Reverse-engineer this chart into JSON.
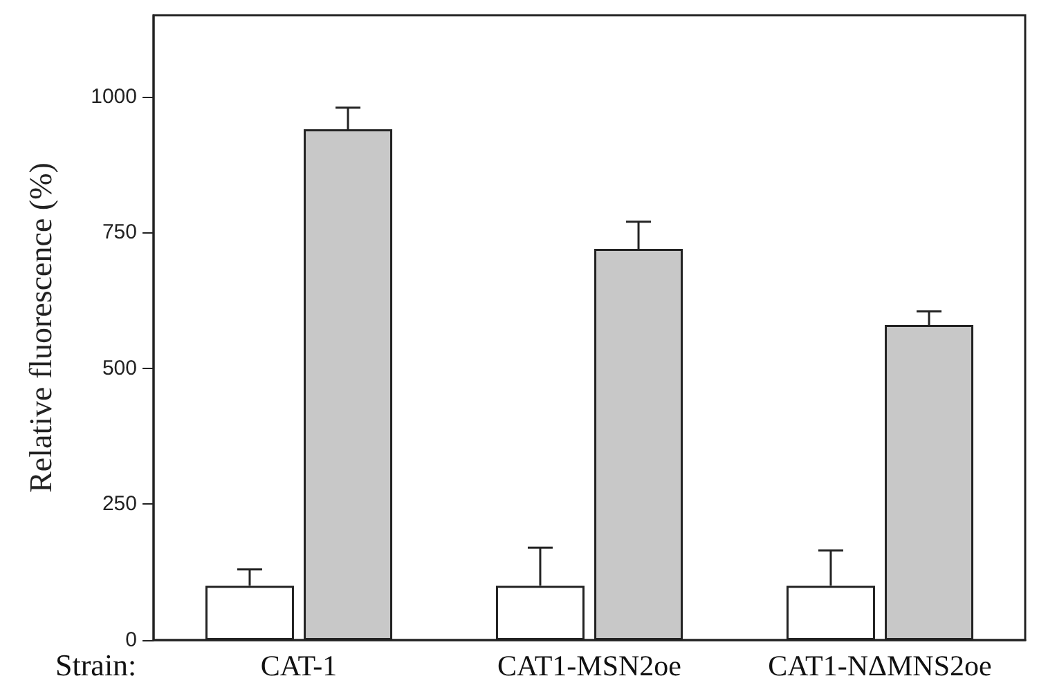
{
  "chart_data": {
    "type": "bar",
    "xlabel": "Strain:",
    "ylabel": "Relative fluorescence (%)",
    "categories": [
      "CAT-1",
      "CAT1-MSN2oe",
      "CAT1-NΔMNS2oe"
    ],
    "series": [
      {
        "color": "#ffffff",
        "values": [
          100,
          100,
          100
        ],
        "errors": [
          [
            100,
            130
          ],
          [
            100,
            170
          ],
          [
            100,
            165
          ]
        ]
      },
      {
        "color": "#c8c8c8",
        "values": [
          940,
          720,
          580
        ],
        "errors": [
          [
            940,
            980
          ],
          [
            720,
            770
          ],
          [
            580,
            605
          ]
        ]
      }
    ],
    "ylim": [
      0,
      1150
    ],
    "yticks": [
      0,
      250,
      500,
      750,
      1000
    ],
    "grid": false
  }
}
